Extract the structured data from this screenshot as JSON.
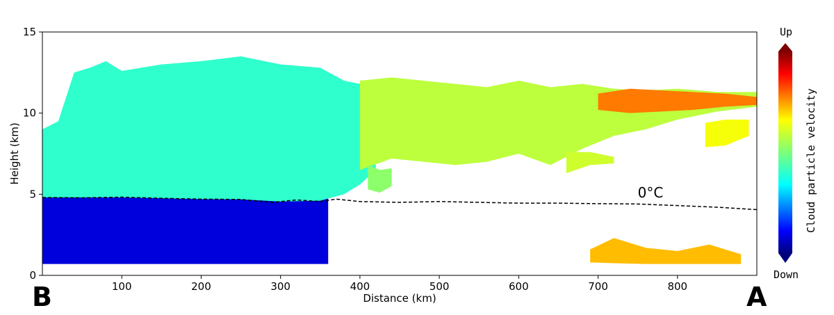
{
  "chart_data": {
    "type": "heatmap",
    "title": "",
    "xlabel": "Distance (km)",
    "ylabel": "Height (km)",
    "xlim": [
      0,
      900
    ],
    "ylim": [
      0,
      15
    ],
    "xticks": [
      100,
      200,
      300,
      400,
      500,
      600,
      700,
      800
    ],
    "yticks": [
      0,
      5,
      10,
      15
    ],
    "corner_labels": {
      "left": "B",
      "right": "A"
    },
    "colorbar": {
      "label": "Cloud particle velocity",
      "top_label": "Up",
      "bottom_label": "Down",
      "colormap": "jet"
    },
    "isotherm": {
      "label": "0°C",
      "label_x": 750,
      "label_y": 4.8,
      "x": [
        0,
        50,
        100,
        150,
        200,
        250,
        290,
        320,
        350,
        370,
        400,
        450,
        500,
        550,
        600,
        650,
        700,
        750,
        800,
        850,
        900
      ],
      "y": [
        4.8,
        4.78,
        4.82,
        4.75,
        4.7,
        4.68,
        4.5,
        4.65,
        4.55,
        4.7,
        4.55,
        4.5,
        4.55,
        4.5,
        4.45,
        4.45,
        4.42,
        4.4,
        4.3,
        4.2,
        4.05
      ]
    },
    "regions": [
      {
        "name": "precipitation-band-strong-downward",
        "velocity": 0.08,
        "x": [
          0,
          360
        ],
        "ybot": [
          0.7
        ],
        "ytop": [
          4.8
        ]
      },
      {
        "name": "upper-cloud-slight-downward",
        "velocity": 0.4,
        "x": [
          0,
          20,
          40,
          60,
          80,
          100,
          150,
          200,
          250,
          300,
          350,
          380,
          400,
          420
        ],
        "ybot": [
          4.8,
          4.8,
          4.8,
          4.8,
          4.8,
          4.8,
          4.75,
          4.7,
          4.68,
          4.55,
          4.6,
          5.0,
          5.6,
          6.5
        ],
        "ytop": [
          9.0,
          9.5,
          12.5,
          12.8,
          13.2,
          12.6,
          13.0,
          13.2,
          13.5,
          13.0,
          12.8,
          12.0,
          11.8,
          11.5
        ]
      },
      {
        "name": "anvil-cloud-near-zero-velocity",
        "velocity": 0.58,
        "x": [
          400,
          440,
          480,
          520,
          560,
          600,
          640,
          680,
          720,
          760,
          800,
          850,
          900
        ],
        "ybot": [
          6.5,
          7.2,
          7.0,
          6.8,
          7.0,
          7.5,
          6.8,
          7.8,
          8.6,
          9.0,
          9.6,
          10.1,
          10.4
        ],
        "ytop": [
          12.0,
          12.2,
          12.0,
          11.8,
          11.6,
          12.0,
          11.6,
          11.8,
          11.5,
          11.4,
          11.5,
          11.3,
          11.3
        ]
      },
      {
        "name": "anvil-top-upward-patch",
        "velocity": 0.78,
        "x": [
          700,
          740,
          780,
          820,
          860,
          900
        ],
        "ybot": [
          10.2,
          10.0,
          10.1,
          10.2,
          10.4,
          10.5
        ],
        "ytop": [
          11.2,
          11.5,
          11.4,
          11.3,
          11.2,
          11.0
        ]
      },
      {
        "name": "low-level-cloud-upward",
        "velocity": 0.72,
        "x": [
          690,
          720,
          760,
          800,
          840,
          880
        ],
        "ybot": [
          0.8,
          0.75,
          0.7,
          0.7,
          0.7,
          0.7
        ],
        "ytop": [
          1.6,
          2.3,
          1.7,
          1.5,
          1.9,
          1.3
        ]
      },
      {
        "name": "isolated-cell-east",
        "velocity": 0.65,
        "x": [
          835,
          860,
          890
        ],
        "ybot": [
          7.9,
          8.0,
          8.6
        ],
        "ytop": [
          9.4,
          9.6,
          9.6
        ]
      },
      {
        "name": "fallstreak-west",
        "velocity": 0.52,
        "x": [
          410,
          425,
          440
        ],
        "ybot": [
          5.3,
          5.1,
          5.5
        ],
        "ytop": [
          6.8,
          6.5,
          6.6
        ]
      },
      {
        "name": "fallstreak-mid",
        "velocity": 0.6,
        "x": [
          660,
          690,
          720
        ],
        "ybot": [
          6.3,
          6.8,
          6.9
        ],
        "ytop": [
          7.6,
          7.6,
          7.3
        ]
      }
    ]
  }
}
